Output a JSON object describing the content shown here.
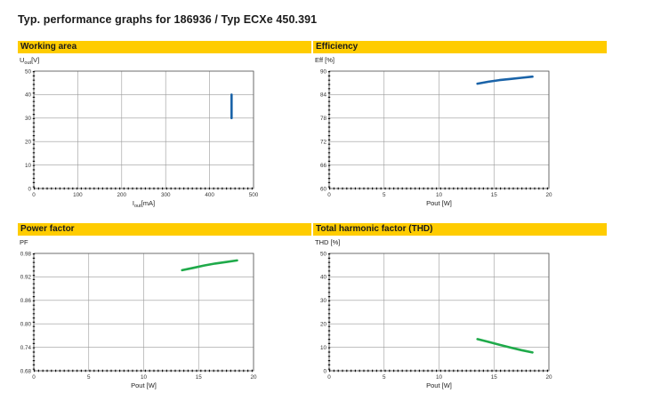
{
  "page": {
    "title": "Typ. performance graphs for 186936 / Typ ECXe 450.391"
  },
  "chart_data": [
    {
      "id": "working-area",
      "type": "line",
      "title": "Working area",
      "ylabel_main": "U",
      "ylabel_sub": "out",
      "ylabel_unit": "[V]",
      "xlabel_main": "I",
      "xlabel_sub": "out",
      "xlabel_unit": "[mA]",
      "xlim": [
        0,
        500
      ],
      "ylim": [
        0,
        50
      ],
      "xticks": [
        0,
        100,
        200,
        300,
        400,
        500
      ],
      "yticks": [
        0,
        10,
        20,
        30,
        40,
        50
      ],
      "ytick_labels": [
        "0",
        "10",
        "20",
        "30",
        "40",
        "50"
      ],
      "grid": true,
      "color": "#1a63a8",
      "series": [
        {
          "x": [
            450,
            450
          ],
          "y": [
            30,
            40
          ]
        }
      ]
    },
    {
      "id": "efficiency",
      "type": "line",
      "title": "Efficiency",
      "ylabel": "Eff [%]",
      "xlabel": "Pout [W]",
      "xlim": [
        0,
        20
      ],
      "ylim": [
        60,
        90
      ],
      "xticks": [
        0,
        5,
        10,
        15,
        20
      ],
      "yticks": [
        60,
        66,
        72,
        78,
        84,
        90
      ],
      "ytick_labels": [
        "60",
        "66",
        "72",
        "78",
        "84",
        "90"
      ],
      "grid": true,
      "color": "#1a63a8",
      "series": [
        {
          "x": [
            13.5,
            14.5,
            15.5,
            16.5,
            17.5,
            18.5
          ],
          "y": [
            86.8,
            87.3,
            87.7,
            88.0,
            88.3,
            88.6
          ]
        }
      ]
    },
    {
      "id": "power-factor",
      "type": "line",
      "title": "Power factor",
      "ylabel": "PF",
      "xlabel": "Pout [W]",
      "xlim": [
        0,
        20
      ],
      "ylim": [
        0.68,
        0.98
      ],
      "xticks": [
        0,
        5,
        10,
        15,
        20
      ],
      "yticks": [
        0.68,
        0.74,
        0.8,
        0.86,
        0.92,
        0.98
      ],
      "ytick_labels": [
        "0.68",
        "0.74",
        "0.80",
        "0.86",
        "0.92",
        "0.98"
      ],
      "grid": true,
      "color": "#1faa4a",
      "series": [
        {
          "x": [
            13.5,
            14.5,
            15.5,
            16.5,
            17.5,
            18.5
          ],
          "y": [
            0.937,
            0.943,
            0.949,
            0.954,
            0.958,
            0.962
          ]
        }
      ]
    },
    {
      "id": "thd",
      "type": "line",
      "title": "Total harmonic factor (THD)",
      "ylabel": "THD [%]",
      "xlabel": "Pout [W]",
      "xlim": [
        0,
        20
      ],
      "ylim": [
        0,
        50
      ],
      "xticks": [
        0,
        5,
        10,
        15,
        20
      ],
      "yticks": [
        0,
        10,
        20,
        30,
        40,
        50
      ],
      "ytick_labels": [
        "0",
        "10",
        "20",
        "30",
        "40",
        "50"
      ],
      "grid": true,
      "color": "#1faa4a",
      "series": [
        {
          "x": [
            13.5,
            14.5,
            15.5,
            16.5,
            17.5,
            18.5
          ],
          "y": [
            13.5,
            12.3,
            11.1,
            9.9,
            8.8,
            7.8
          ]
        }
      ]
    }
  ]
}
